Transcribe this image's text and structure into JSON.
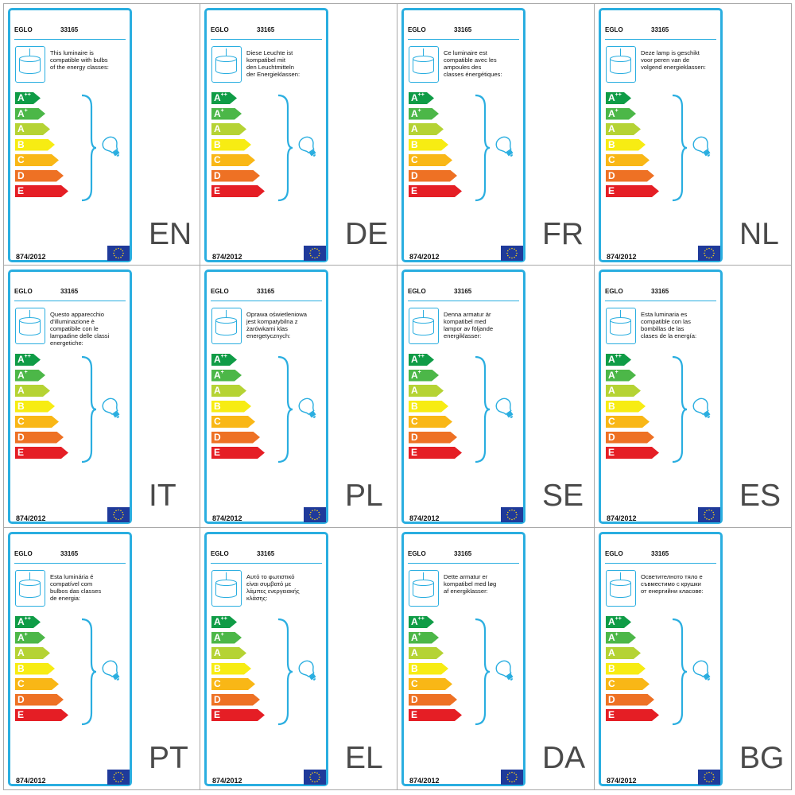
{
  "colors": {
    "border": "#2aaee0",
    "classes": [
      "#0f9c46",
      "#4cb748",
      "#b5d334",
      "#f7ec13",
      "#f9b716",
      "#ee7124",
      "#e51e25"
    ],
    "eu_flag_blue": "#1f3a9a",
    "eu_flag_stars": "#f7d116"
  },
  "icons": [
    "lamp-icon",
    "bulb-icon",
    "eu-flag-icon"
  ],
  "labels": [
    {
      "brand": "EGLO",
      "model": "33165",
      "text": "This luminaire is\ncompatible with bulbs\nof the energy classes:",
      "regulation": "874/2012",
      "lang": "EN",
      "classes": [
        {
          "letter": "A",
          "sup": "++"
        },
        {
          "letter": "A",
          "sup": "+"
        },
        {
          "letter": "A",
          "sup": ""
        },
        {
          "letter": "B",
          "sup": ""
        },
        {
          "letter": "C",
          "sup": ""
        },
        {
          "letter": "D",
          "sup": ""
        },
        {
          "letter": "E",
          "sup": ""
        }
      ]
    },
    {
      "brand": "EGLO",
      "model": "33165",
      "text": "Diese Leuchte ist\nkompatibel mit\nden Leuchtmitteln\nder Energieklassen:",
      "regulation": "874/2012",
      "lang": "DE",
      "classes": [
        {
          "letter": "A",
          "sup": "++"
        },
        {
          "letter": "A",
          "sup": "+"
        },
        {
          "letter": "A",
          "sup": ""
        },
        {
          "letter": "B",
          "sup": ""
        },
        {
          "letter": "C",
          "sup": ""
        },
        {
          "letter": "D",
          "sup": ""
        },
        {
          "letter": "E",
          "sup": ""
        }
      ]
    },
    {
      "brand": "EGLO",
      "model": "33165",
      "text": "Ce luminaire est\ncompatible avec les\nampoules des\nclasses énergétiques:",
      "regulation": "874/2012",
      "lang": "FR",
      "classes": [
        {
          "letter": "A",
          "sup": "++"
        },
        {
          "letter": "A",
          "sup": "+"
        },
        {
          "letter": "A",
          "sup": ""
        },
        {
          "letter": "B",
          "sup": ""
        },
        {
          "letter": "C",
          "sup": ""
        },
        {
          "letter": "D",
          "sup": ""
        },
        {
          "letter": "E",
          "sup": ""
        }
      ]
    },
    {
      "brand": "EGLO",
      "model": "33165",
      "text": "Deze lamp is geschikt\nvoor peren van de\nvolgend energieklassen:",
      "regulation": "874/2012",
      "lang": "NL",
      "classes": [
        {
          "letter": "A",
          "sup": "++"
        },
        {
          "letter": "A",
          "sup": "+"
        },
        {
          "letter": "A",
          "sup": ""
        },
        {
          "letter": "B",
          "sup": ""
        },
        {
          "letter": "C",
          "sup": ""
        },
        {
          "letter": "D",
          "sup": ""
        },
        {
          "letter": "E",
          "sup": ""
        }
      ]
    },
    {
      "brand": "EGLO",
      "model": "33165",
      "text": "Questo apparecchio\nd'illuminazione è\ncompatibile con le\nlampadine delle classi\nenergetiche:",
      "regulation": "874/2012",
      "lang": "IT",
      "classes": [
        {
          "letter": "A",
          "sup": "++"
        },
        {
          "letter": "A",
          "sup": "+"
        },
        {
          "letter": "A",
          "sup": ""
        },
        {
          "letter": "B",
          "sup": ""
        },
        {
          "letter": "C",
          "sup": ""
        },
        {
          "letter": "D",
          "sup": ""
        },
        {
          "letter": "E",
          "sup": ""
        }
      ]
    },
    {
      "brand": "EGLO",
      "model": "33165",
      "text": "Oprawa oświetleniowa\njest kompatybilna z\nżarówkami klas\nenergetycznych:",
      "regulation": "874/2012",
      "lang": "PL",
      "classes": [
        {
          "letter": "A",
          "sup": "++"
        },
        {
          "letter": "A",
          "sup": "+"
        },
        {
          "letter": "A",
          "sup": ""
        },
        {
          "letter": "B",
          "sup": ""
        },
        {
          "letter": "C",
          "sup": ""
        },
        {
          "letter": "D",
          "sup": ""
        },
        {
          "letter": "E",
          "sup": ""
        }
      ]
    },
    {
      "brand": "EGLO",
      "model": "33165",
      "text": "Denna armatur är\nkompatibel med\nlampor av följande\nenergiklasser:",
      "regulation": "874/2012",
      "lang": "SE",
      "classes": [
        {
          "letter": "A",
          "sup": "++"
        },
        {
          "letter": "A",
          "sup": "+"
        },
        {
          "letter": "A",
          "sup": ""
        },
        {
          "letter": "B",
          "sup": ""
        },
        {
          "letter": "C",
          "sup": ""
        },
        {
          "letter": "D",
          "sup": ""
        },
        {
          "letter": "E",
          "sup": ""
        }
      ]
    },
    {
      "brand": "EGLO",
      "model": "33165",
      "text": "Esta luminaria es\ncompatible con las\nbombillas de las\nclases de la energía:",
      "regulation": "874/2012",
      "lang": "ES",
      "classes": [
        {
          "letter": "A",
          "sup": "++"
        },
        {
          "letter": "A",
          "sup": "+"
        },
        {
          "letter": "A",
          "sup": ""
        },
        {
          "letter": "B",
          "sup": ""
        },
        {
          "letter": "C",
          "sup": ""
        },
        {
          "letter": "D",
          "sup": ""
        },
        {
          "letter": "E",
          "sup": ""
        }
      ]
    },
    {
      "brand": "EGLO",
      "model": "33165",
      "text": "Esta luminária é\ncompatível com\nbulbos das classes\nde energia:",
      "regulation": "874/2012",
      "lang": "PT",
      "classes": [
        {
          "letter": "A",
          "sup": "++"
        },
        {
          "letter": "A",
          "sup": "+"
        },
        {
          "letter": "A",
          "sup": ""
        },
        {
          "letter": "B",
          "sup": ""
        },
        {
          "letter": "C",
          "sup": ""
        },
        {
          "letter": "D",
          "sup": ""
        },
        {
          "letter": "E",
          "sup": ""
        }
      ]
    },
    {
      "brand": "EGLO",
      "model": "33165",
      "text": "Αυτό το φωτιστικό\nείναι συμβατό με\nλάμπες ενεργειακής\nκλάσης:",
      "regulation": "874/2012",
      "lang": "EL",
      "classes": [
        {
          "letter": "A",
          "sup": "++"
        },
        {
          "letter": "A",
          "sup": "+"
        },
        {
          "letter": "A",
          "sup": ""
        },
        {
          "letter": "B",
          "sup": ""
        },
        {
          "letter": "C",
          "sup": ""
        },
        {
          "letter": "D",
          "sup": ""
        },
        {
          "letter": "E",
          "sup": ""
        }
      ]
    },
    {
      "brand": "EGLO",
      "model": "33165",
      "text": "Dette armatur er\nkompatibel med løg\naf energiklasser:",
      "regulation": "874/2012",
      "lang": "DA",
      "classes": [
        {
          "letter": "A",
          "sup": "++"
        },
        {
          "letter": "A",
          "sup": "+"
        },
        {
          "letter": "A",
          "sup": ""
        },
        {
          "letter": "B",
          "sup": ""
        },
        {
          "letter": "C",
          "sup": ""
        },
        {
          "letter": "D",
          "sup": ""
        },
        {
          "letter": "E",
          "sup": ""
        }
      ]
    },
    {
      "brand": "EGLO",
      "model": "33165",
      "text": "Осветителното тяло е\nсъвместимо с крушки\nот енергийни класове:",
      "regulation": "874/2012",
      "lang": "BG",
      "classes": [
        {
          "letter": "A",
          "sup": "++"
        },
        {
          "letter": "A",
          "sup": "+"
        },
        {
          "letter": "A",
          "sup": ""
        },
        {
          "letter": "B",
          "sup": ""
        },
        {
          "letter": "C",
          "sup": ""
        },
        {
          "letter": "D",
          "sup": ""
        },
        {
          "letter": "E",
          "sup": ""
        }
      ]
    }
  ]
}
